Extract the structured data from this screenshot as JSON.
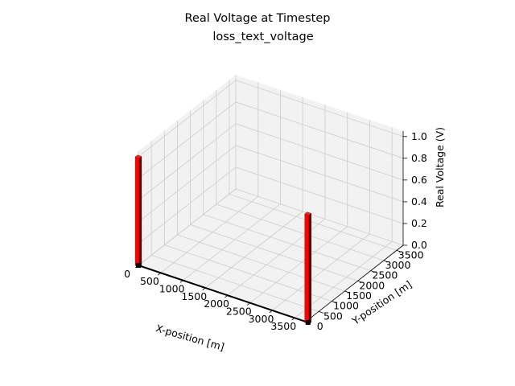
{
  "chart_data": {
    "type": "bar3d",
    "title": "Real Voltage at Timestep",
    "subtitle": "loss_text_voltage",
    "xlabel": "X-position [m]",
    "ylabel": "Y-position [m]",
    "zlabel": "Real Voltage (V)",
    "xlim": [
      0,
      3750
    ],
    "ylim": [
      0,
      3750
    ],
    "zlim": [
      0,
      1.05
    ],
    "x_ticks": [
      "0",
      "500",
      "1000",
      "1500",
      "2000",
      "2500",
      "3000",
      "3500"
    ],
    "y_ticks": [
      "0",
      "500",
      "1000",
      "1500",
      "2000",
      "2500",
      "3000",
      "3500"
    ],
    "z_ticks": [
      "0.0",
      "0.2",
      "0.4",
      "0.6",
      "0.8",
      "1.0"
    ],
    "grid": true,
    "bars": [
      {
        "x": 0,
        "y": 0,
        "value": 1.0,
        "color": "#ff0000"
      },
      {
        "x": 3800,
        "y": 0,
        "value": 1.0,
        "color": "#ff0000"
      }
    ],
    "line": {
      "from": [
        0,
        0
      ],
      "to": [
        3800,
        0
      ],
      "color": "#000000"
    },
    "pane_color": "#f2f2f2",
    "grid_color": "#cccccc"
  }
}
